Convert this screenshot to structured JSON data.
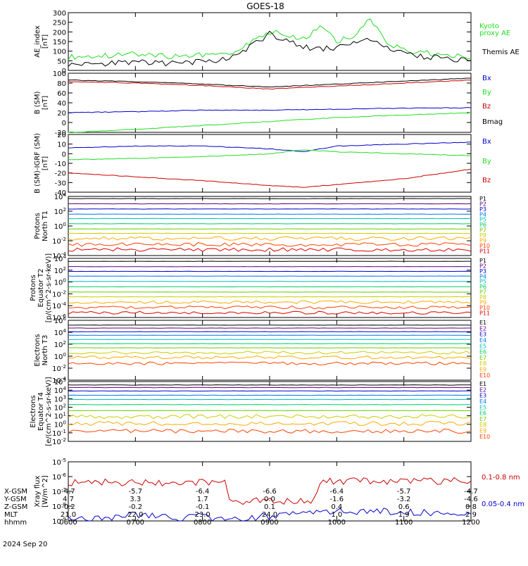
{
  "title": "GOES-18",
  "date_label": "2024 Sep 20",
  "time_ticks": [
    "0600",
    "0700",
    "0800",
    "0900",
    "1000",
    "1100",
    "1200"
  ],
  "ephemeris": [
    {
      "label": "X-GSM",
      "values": [
        "-4.7",
        "-5.7",
        "-6.4",
        "-6.6",
        "-6.4",
        "-5.7",
        "-4.7"
      ]
    },
    {
      "label": "Y-GSM",
      "values": [
        "4.7",
        "3.3",
        "1.7",
        "0.0",
        "-1.6",
        "-3.2",
        "-4.6"
      ]
    },
    {
      "label": "Z-GSM",
      "values": [
        "-0.2",
        "-0.2",
        "-0.1",
        "0.1",
        "0.4",
        "0.6",
        "0.8"
      ]
    },
    {
      "label": "MLT",
      "values": [
        "21.0",
        "22.0",
        "23.0",
        "24.0",
        "1.0",
        "1.9",
        "2.9"
      ]
    },
    {
      "label": "hhmm",
      "values": [
        "0600",
        "0700",
        "0800",
        "0900",
        "1000",
        "1100",
        "1200"
      ]
    }
  ],
  "colors": {
    "black": "#000000",
    "red": "#cc0000",
    "green": "#22dd22",
    "blue": "#0000cc",
    "bands": [
      "#000000",
      "#5a0080",
      "#0000cc",
      "#0077ee",
      "#00bbbb",
      "#00cc66",
      "#66cc00",
      "#cccc00",
      "#ffaa00",
      "#ff4400",
      "#dd0000",
      "#990000"
    ]
  },
  "chart_data": [
    {
      "type": "line",
      "ylabel": "AE_index\n[nT]",
      "yticks": [
        "300",
        "250",
        "200",
        "150",
        "100",
        "50",
        "0"
      ],
      "ylim": [
        0,
        300
      ],
      "log": false,
      "series": [
        {
          "name": "Kyoto proxy AE",
          "color": "green",
          "x": [
            "0600",
            "0630",
            "0700",
            "0730",
            "0800",
            "0815",
            "0830",
            "0845",
            "0900",
            "0915",
            "0930",
            "0945",
            "1000",
            "1015",
            "1030",
            "1045",
            "1100",
            "1115",
            "1130",
            "1145",
            "1200"
          ],
          "y": [
            70,
            75,
            85,
            70,
            80,
            85,
            95,
            150,
            200,
            185,
            160,
            230,
            150,
            175,
            270,
            140,
            105,
            95,
            80,
            75,
            60
          ]
        },
        {
          "name": "Themis AE",
          "color": "black",
          "x": [
            "0600",
            "0630",
            "0700",
            "0730",
            "0800",
            "0815",
            "0830",
            "0845",
            "0900",
            "0915",
            "0930",
            "0945",
            "1000",
            "1015",
            "1030",
            "1045",
            "1100",
            "1115",
            "1130",
            "1145",
            "1200"
          ],
          "y": [
            30,
            35,
            45,
            35,
            45,
            55,
            70,
            130,
            190,
            160,
            120,
            110,
            120,
            145,
            160,
            115,
            85,
            75,
            65,
            55,
            50
          ]
        }
      ],
      "legend": [
        "Kyoto",
        "proxy AE",
        "Themis AE"
      ]
    },
    {
      "type": "line",
      "ylabel": "B (SM)\n[nT]",
      "yticks": [
        "100",
        "80",
        "60",
        "40",
        "20",
        "0",
        "-20"
      ],
      "ylim": [
        -20,
        100
      ],
      "log": false,
      "series": [
        {
          "name": "Bx",
          "color": "blue",
          "x": [
            "0600",
            "0700",
            "0800",
            "0900",
            "1000",
            "1100",
            "1200"
          ],
          "y": [
            20,
            22,
            25,
            25,
            27,
            29,
            30
          ]
        },
        {
          "name": "By",
          "color": "green",
          "x": [
            "0600",
            "0700",
            "0800",
            "0900",
            "1000",
            "1100",
            "1200"
          ],
          "y": [
            -20,
            -14,
            -6,
            2,
            10,
            15,
            20
          ]
        },
        {
          "name": "Bz",
          "color": "red",
          "x": [
            "0600",
            "0700",
            "0800",
            "0900",
            "1000",
            "1100",
            "1200"
          ],
          "y": [
            83,
            80,
            75,
            68,
            74,
            80,
            86
          ]
        },
        {
          "name": "Bmag",
          "color": "black",
          "x": [
            "0600",
            "0700",
            "0800",
            "0900",
            "1000",
            "1100",
            "1200"
          ],
          "y": [
            86,
            83,
            78,
            72,
            78,
            84,
            90
          ]
        }
      ],
      "legend": [
        "Bx",
        "By",
        "Bz",
        "Bmag"
      ]
    },
    {
      "type": "line",
      "ylabel": "B (SM)-IGRF (SM)\n[nT]",
      "yticks": [
        "20",
        "10",
        "0",
        "-10",
        "-20",
        "-30",
        "-40"
      ],
      "ylim": [
        -40,
        20
      ],
      "log": false,
      "series": [
        {
          "name": "Bx",
          "color": "blue",
          "x": [
            "0600",
            "0700",
            "0800",
            "0900",
            "0930",
            "1000",
            "1100",
            "1200"
          ],
          "y": [
            6,
            8,
            8,
            5,
            2,
            8,
            10,
            12
          ]
        },
        {
          "name": "By",
          "color": "green",
          "x": [
            "0600",
            "0700",
            "0800",
            "0900",
            "0930",
            "1000",
            "1100",
            "1200"
          ],
          "y": [
            -6,
            -5,
            -3,
            0,
            4,
            2,
            0,
            -2
          ]
        },
        {
          "name": "Bz",
          "color": "red",
          "x": [
            "0600",
            "0700",
            "0800",
            "0900",
            "0930",
            "1000",
            "1100",
            "1200"
          ],
          "y": [
            -20,
            -24,
            -28,
            -33,
            -35,
            -32,
            -26,
            -16
          ]
        }
      ],
      "legend": [
        "Bx",
        "By",
        "Bz"
      ]
    },
    {
      "type": "line",
      "ylabel": "Protons\nNorth T1",
      "yticks": [
        "10^4",
        "10^2",
        "10^0",
        "10^-2",
        "10^-4"
      ],
      "ylim": [
        -4,
        4
      ],
      "log": true,
      "levels": [
        3.7,
        3.0,
        2.3,
        1.6,
        1.0,
        0.3,
        -0.4,
        -1.0,
        -1.7,
        -2.5,
        -3.2
      ],
      "legend": [
        "P1",
        "P2",
        "P3",
        "P4",
        "P5",
        "P6",
        "P7",
        "P8",
        "P9",
        "P10",
        "P11"
      ]
    },
    {
      "type": "line",
      "ylabel": "Protons\nEquator T2\n[p/(cm^2-s-sr-keV)]",
      "yticks": [
        "10^4",
        "10^2",
        "10^0",
        "10^-2",
        "10^-4",
        "10^-6"
      ],
      "ylim": [
        -6,
        4
      ],
      "log": true,
      "levels": [
        3.5,
        2.6,
        1.8,
        1.0,
        0.1,
        -0.8,
        -1.7,
        -2.5,
        -3.4,
        -4.3,
        -5.2
      ],
      "legend": [
        "P1",
        "P2",
        "P3",
        "P4",
        "P5",
        "P6",
        "P7",
        "P8",
        "P9",
        "P10",
        "P11"
      ]
    },
    {
      "type": "line",
      "ylabel": "Electrons\nNorth T3",
      "yticks": [
        "10^6",
        "10^4",
        "10^2",
        "10^0",
        "10^-2",
        "10^-4"
      ],
      "ylim": [
        -4,
        6
      ],
      "log": true,
      "levels": [
        5.2,
        4.7,
        4.1,
        3.5,
        2.8,
        2.1,
        1.4,
        0.6,
        -0.2,
        -1.2
      ],
      "legend": [
        "E1",
        "E2",
        "E3",
        "E4",
        "E5",
        "E6",
        "E7",
        "E8",
        "E9",
        "E10"
      ]
    },
    {
      "type": "line",
      "ylabel": "Electrons\nEquator T4\n[e/(cm^2-s-sr-keV)]",
      "yticks": [
        "10^5",
        "10^4",
        "10^3",
        "10^2",
        "10^1",
        "10^0",
        "10^-1",
        "10^-2"
      ],
      "ylim": [
        -2,
        5
      ],
      "log": true,
      "levels": [
        4.6,
        4.3,
        3.9,
        3.4,
        2.9,
        2.3,
        1.6,
        0.9,
        0.1,
        -0.8
      ],
      "legend": [
        "E1",
        "E2",
        "E3",
        "E4",
        "E5",
        "E6",
        "E7",
        "E8",
        "E9",
        "E10"
      ]
    },
    {
      "type": "line",
      "ylabel": "Xray flux\n[W/m^2]",
      "yticks": [
        "10^-5",
        "10^-6",
        "10^-7",
        "10^-8",
        "10^-9"
      ],
      "ylim": [
        -9,
        -5
      ],
      "log": true,
      "series": [
        {
          "name": "0.1-0.8 nm",
          "color": "red",
          "x": [
            "0600",
            "0700",
            "0800",
            "0820",
            "0824",
            "0940",
            "0945",
            "1000",
            "1100",
            "1200"
          ],
          "y": [
            -6.4,
            -6.4,
            -6.4,
            -6.4,
            -7.7,
            -7.6,
            -6.3,
            -6.3,
            -6.3,
            -6.3
          ]
        },
        {
          "name": "0.05-0.4 nm",
          "color": "blue",
          "x": [
            "0600",
            "0630",
            "0700",
            "0730",
            "0800",
            "0820",
            "0945",
            "1000",
            "1100",
            "1200"
          ],
          "y": [
            -8.8,
            -8.9,
            -8.6,
            -8.8,
            -8.7,
            -9.0,
            -8.3,
            -8.3,
            -8.4,
            -8.5
          ]
        }
      ],
      "legend": [
        "0.1-0.8 nm",
        "0.05-0.4 nm"
      ]
    }
  ]
}
